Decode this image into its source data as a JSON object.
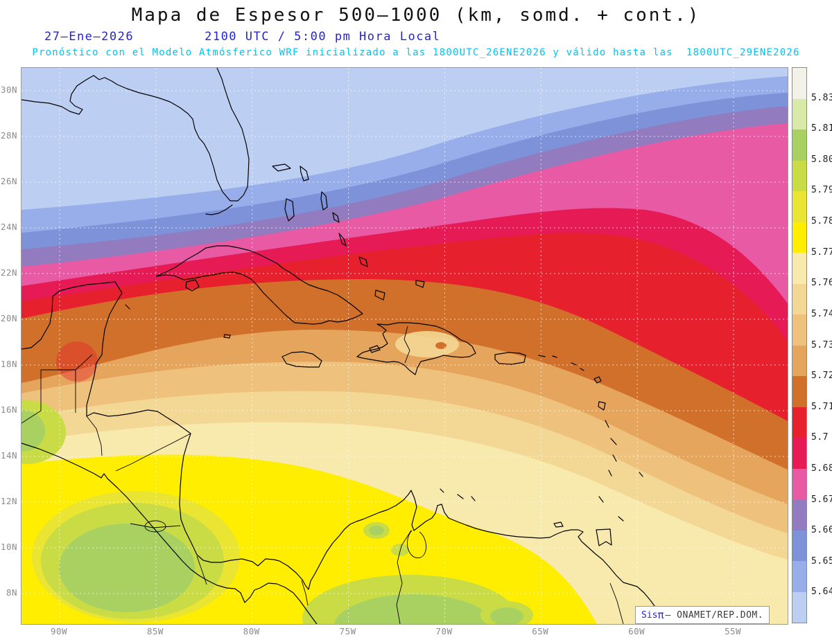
{
  "header": {
    "title": "Mapa de Espesor 500–1000 (km, somd. + cont.)",
    "date": "27–Ene–2026",
    "time": "2100 UTC / 5:00 pm Hora Local",
    "forecast": "Pronóstico con el Modelo Atmósferico WRF inicializado a las 1800UTC_26ENE2026 y válido hasta las  1800UTC_29ENE2026"
  },
  "map": {
    "lat_labels": [
      "30N",
      "28N",
      "26N",
      "24N",
      "22N",
      "20N",
      "18N",
      "16N",
      "14N",
      "12N",
      "10N",
      "8N"
    ],
    "lon_labels": [
      "90W",
      "85W",
      "80W",
      "75W",
      "70W",
      "65W",
      "60W",
      "55W"
    ]
  },
  "colorbar": {
    "units": "km",
    "labels": [
      "5.831",
      "5.819",
      "5.807",
      "5.795",
      "5.783",
      "5.772",
      "5.76",
      "5.748",
      "5.736",
      "5.724",
      "5.712",
      "5.7",
      "5.688",
      "5.676",
      "5.664",
      "5.652",
      "5.64"
    ],
    "colors": [
      "#f3f2e9",
      "#d9eaa8",
      "#a9d162",
      "#c9dc45",
      "#e9e532",
      "#ffee00",
      "#f8e9ad",
      "#f3d794",
      "#eec17c",
      "#e5a55d",
      "#d1702a",
      "#e7202e",
      "#e61a55",
      "#e85ba4",
      "#937bc0",
      "#7d92d8",
      "#97aeea",
      "#bccff3"
    ]
  },
  "branding": {
    "brand": "Sis",
    "pi": "π",
    "org": "— ONAMET/REP.DOM."
  },
  "theme": {
    "title_color": "#111111",
    "date_color": "#2525cb",
    "forecast_color": "#00c3f2",
    "axis_color": "#8b8b8b",
    "brand_color": "#2525cb",
    "grid_color": "#ffffff",
    "coast_color": "#000000"
  }
}
